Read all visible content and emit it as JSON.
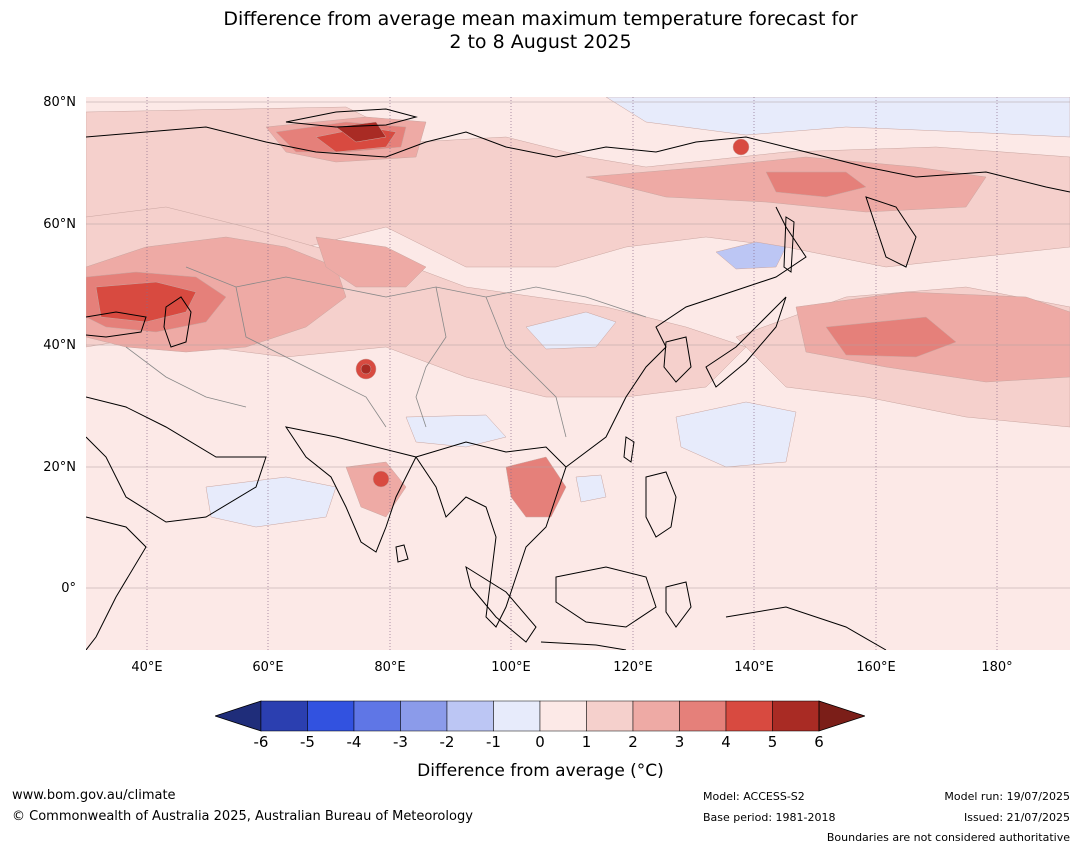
{
  "title": {
    "line1": "Difference from average mean maximum temperature forecast for",
    "line2": "2 to 8 August 2025"
  },
  "axes": {
    "lat_labels": [
      "80°N",
      "60°N",
      "40°N",
      "20°N",
      "0°"
    ],
    "lon_labels": [
      "40°E",
      "60°E",
      "80°E",
      "100°E",
      "120°E",
      "140°E",
      "160°E",
      "180°"
    ],
    "lat_range": [
      -10,
      80
    ],
    "lon_range": [
      30,
      192
    ]
  },
  "colorbar": {
    "ticks": [
      "-6",
      "-5",
      "-4",
      "-3",
      "-2",
      "-1",
      "0",
      "1",
      "2",
      "3",
      "4",
      "5",
      "6"
    ],
    "colors": [
      "#1f2d7a",
      "#2b3fb0",
      "#3252e0",
      "#5f76e6",
      "#8b9bea",
      "#bcc6f4",
      "#e7ebfb",
      "#fce9e7",
      "#f5d0cc",
      "#eeaaa5",
      "#e5807a",
      "#d84a40",
      "#a92b24",
      "#7b1e18"
    ],
    "label": "Difference from average (°C)"
  },
  "footer": {
    "url": "www.bom.gov.au/climate",
    "copyright": "© Commonwealth of Australia 2025, Australian Bureau of Meteorology",
    "model": "Model: ACCESS-S2",
    "base_period": "Base period: 1981-2018",
    "model_run": "Model run: 19/07/2025",
    "issued": "Issued: 21/07/2025",
    "disclaimer": "Boundaries are not considered authoritative"
  }
}
